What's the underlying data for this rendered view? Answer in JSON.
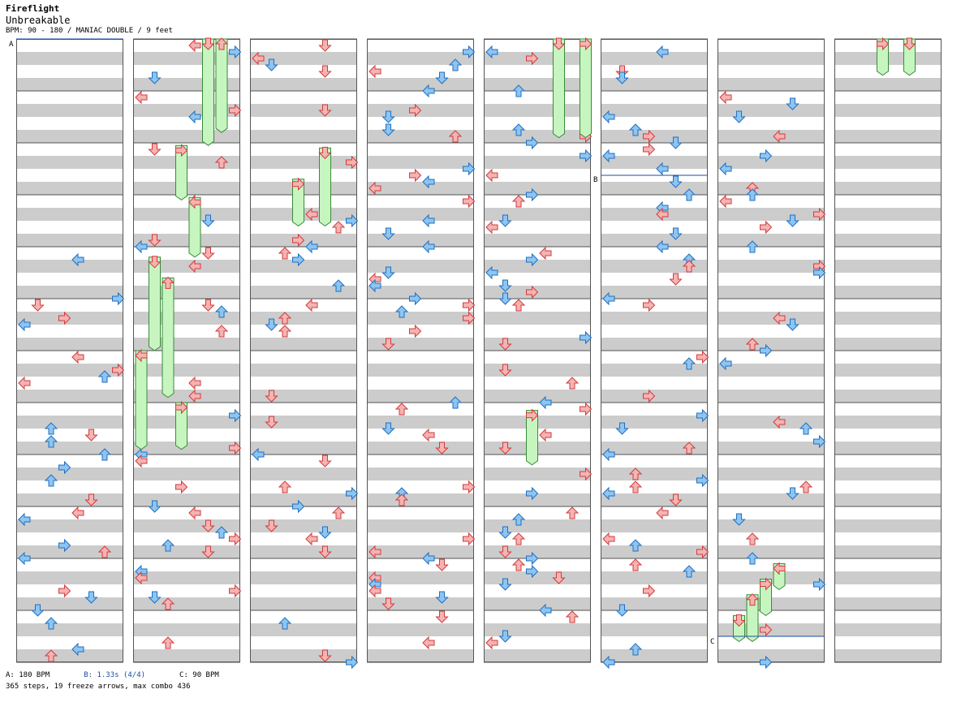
{
  "header": {
    "title": "Fireflight",
    "song": "Unbreakable",
    "info": "BPM: 90 - 180 / MANIAC DOUBLE / 9 feet"
  },
  "footer": {
    "legend_a": "A: 180 BPM",
    "legend_b": "B: 1.33s (4/4)",
    "legend_c": "C: 90 BPM",
    "stats": "365 steps, 19 freeze arrows, max combo 436"
  },
  "markers": {
    "a": "A",
    "b": "B",
    "c": "C"
  },
  "colors": {
    "stripe": "#cccccc",
    "measure_line": "#555555",
    "arrow_red_fill": "#f5b3b3",
    "arrow_red_stroke": "#d23b3b",
    "arrow_blue_fill": "#8ec5f0",
    "arrow_blue_stroke": "#1f6fc2",
    "freeze_fill": "#c7f5c0",
    "freeze_stroke": "#3a8a3a",
    "marker_line": "#1a4fa0"
  },
  "chart_data": {
    "type": "table",
    "columns": 8,
    "measures_per_column": 12,
    "lanes": [
      "L1",
      "D1",
      "U1",
      "R1",
      "L2",
      "D2",
      "U2",
      "R2"
    ],
    "freezes": [
      {
        "col": 1,
        "lane": 5,
        "start": 0.0,
        "end": 2.05
      },
      {
        "col": 1,
        "lane": 6,
        "start": 0.0,
        "end": 1.8
      },
      {
        "col": 1,
        "lane": 3,
        "start": 2.05,
        "end": 3.1
      },
      {
        "col": 1,
        "lane": 4,
        "start": 3.05,
        "end": 4.2
      },
      {
        "col": 1,
        "lane": 1,
        "start": 4.2,
        "end": 6.0
      },
      {
        "col": 1,
        "lane": 2,
        "start": 4.6,
        "end": 6.9
      },
      {
        "col": 1,
        "lane": 0,
        "start": 6.0,
        "end": 7.9
      },
      {
        "col": 1,
        "lane": 3,
        "start": 7.0,
        "end": 7.9
      },
      {
        "col": 2,
        "lane": 3,
        "start": 2.7,
        "end": 3.6
      },
      {
        "col": 2,
        "lane": 5,
        "start": 2.1,
        "end": 3.6
      },
      {
        "col": 4,
        "lane": 5,
        "start": 0.0,
        "end": 1.9
      },
      {
        "col": 4,
        "lane": 7,
        "start": 0.0,
        "end": 1.9
      },
      {
        "col": 4,
        "lane": 3,
        "start": 7.15,
        "end": 8.2
      },
      {
        "col": 7,
        "lane": 3,
        "start": 0.0,
        "end": 0.7
      },
      {
        "col": 7,
        "lane": 5,
        "start": 0.0,
        "end": 0.7
      },
      {
        "col": 6,
        "lane": 1,
        "start": 11.1,
        "end": 11.6
      },
      {
        "col": 6,
        "lane": 2,
        "start": 10.7,
        "end": 11.6
      },
      {
        "col": 6,
        "lane": 3,
        "start": 10.4,
        "end": 11.1
      },
      {
        "col": 6,
        "lane": 4,
        "start": 10.1,
        "end": 10.6
      }
    ]
  }
}
